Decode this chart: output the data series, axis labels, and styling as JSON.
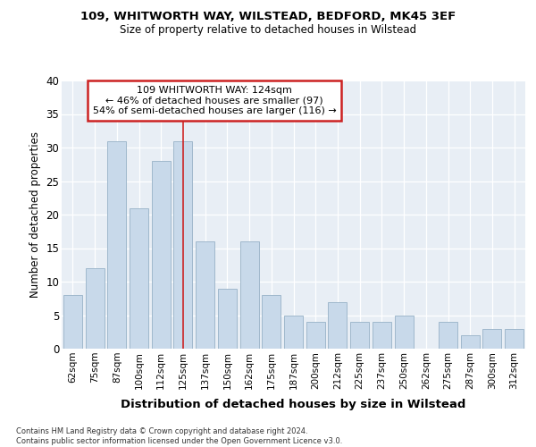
{
  "title1": "109, WHITWORTH WAY, WILSTEAD, BEDFORD, MK45 3EF",
  "title2": "Size of property relative to detached houses in Wilstead",
  "xlabel": "Distribution of detached houses by size in Wilstead",
  "ylabel": "Number of detached properties",
  "categories": [
    "62sqm",
    "75sqm",
    "87sqm",
    "100sqm",
    "112sqm",
    "125sqm",
    "137sqm",
    "150sqm",
    "162sqm",
    "175sqm",
    "187sqm",
    "200sqm",
    "212sqm",
    "225sqm",
    "237sqm",
    "250sqm",
    "262sqm",
    "275sqm",
    "287sqm",
    "300sqm",
    "312sqm"
  ],
  "values": [
    8,
    12,
    31,
    21,
    28,
    31,
    16,
    9,
    16,
    8,
    5,
    4,
    7,
    4,
    4,
    5,
    0,
    4,
    2,
    3,
    3
  ],
  "bar_color": "#c8d9ea",
  "bar_edge_color": "#a0b8cc",
  "highlight_bar_index": 5,
  "highlight_line_color": "#cc2222",
  "annotation_text": "109 WHITWORTH WAY: 124sqm\n← 46% of detached houses are smaller (97)\n54% of semi-detached houses are larger (116) →",
  "annotation_box_facecolor": "#ffffff",
  "annotation_border_color": "#cc2222",
  "footer_text": "Contains HM Land Registry data © Crown copyright and database right 2024.\nContains public sector information licensed under the Open Government Licence v3.0.",
  "plot_bg_color": "#e8eef5",
  "ylim": [
    0,
    40
  ],
  "yticks": [
    0,
    5,
    10,
    15,
    20,
    25,
    30,
    35,
    40
  ]
}
